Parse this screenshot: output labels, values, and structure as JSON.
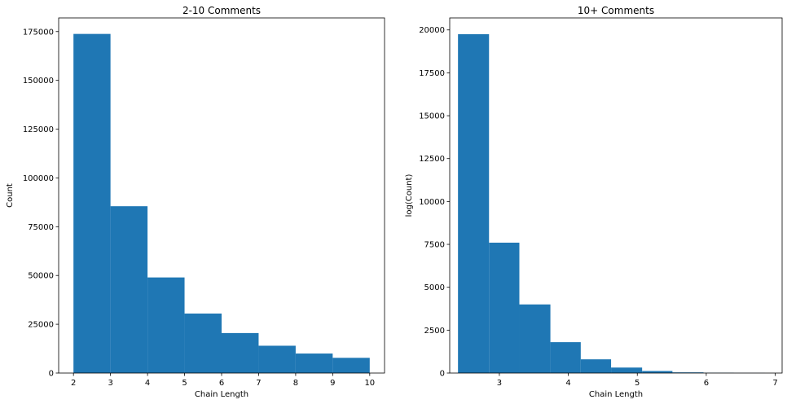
{
  "chart_data": [
    {
      "type": "bar",
      "title": "2-10 Comments",
      "xlabel": "Chain Length",
      "ylabel": "Count",
      "xlim": [
        1.6,
        10.4
      ],
      "ylim": [
        0,
        182000
      ],
      "xticks": [
        2,
        3,
        4,
        5,
        6,
        7,
        8,
        9,
        10
      ],
      "yticks": [
        0,
        25000,
        50000,
        75000,
        100000,
        125000,
        150000,
        175000
      ],
      "xtick_labels": [
        "2",
        "3",
        "4",
        "5",
        "6",
        "7",
        "8",
        "9",
        "10"
      ],
      "ytick_labels": [
        "0",
        "25000",
        "50000",
        "75000",
        "100000",
        "125000",
        "150000",
        "175000"
      ],
      "bins": [
        {
          "x0": 2.0,
          "x1": 3.0,
          "value": 173800
        },
        {
          "x0": 3.0,
          "x1": 4.0,
          "value": 85500
        },
        {
          "x0": 4.0,
          "x1": 5.0,
          "value": 49000
        },
        {
          "x0": 5.0,
          "x1": 6.0,
          "value": 30500
        },
        {
          "x0": 6.0,
          "x1": 7.0,
          "value": 20500
        },
        {
          "x0": 7.0,
          "x1": 8.0,
          "value": 14000
        },
        {
          "x0": 8.0,
          "x1": 9.0,
          "value": 10000
        },
        {
          "x0": 9.0,
          "x1": 10.0,
          "value": 7800
        }
      ],
      "color": "#1f77b4",
      "grid": false
    },
    {
      "type": "bar",
      "title": "10+ Comments",
      "xlabel": "Chain Length",
      "ylabel": "log(Count)",
      "xlim": [
        2.28,
        7.1
      ],
      "ylim": [
        0,
        20700
      ],
      "xticks": [
        3,
        4,
        5,
        6,
        7
      ],
      "yticks": [
        0,
        2500,
        5000,
        7500,
        10000,
        12500,
        15000,
        17500,
        20000
      ],
      "xtick_labels": [
        "3",
        "4",
        "5",
        "6",
        "7"
      ],
      "ytick_labels": [
        "0",
        "2500",
        "5000",
        "7500",
        "10000",
        "12500",
        "15000",
        "17500",
        "20000"
      ],
      "bins": [
        {
          "x0": 2.4,
          "x1": 2.85,
          "value": 19750
        },
        {
          "x0": 2.85,
          "x1": 3.29,
          "value": 7600
        },
        {
          "x0": 3.29,
          "x1": 3.74,
          "value": 4000
        },
        {
          "x0": 3.74,
          "x1": 4.18,
          "value": 1800
        },
        {
          "x0": 4.18,
          "x1": 4.62,
          "value": 800
        },
        {
          "x0": 4.62,
          "x1": 5.07,
          "value": 320
        },
        {
          "x0": 5.07,
          "x1": 5.51,
          "value": 120
        },
        {
          "x0": 5.51,
          "x1": 5.96,
          "value": 40
        },
        {
          "x0": 5.96,
          "x1": 6.4,
          "value": 15
        },
        {
          "x0": 6.4,
          "x1": 6.85,
          "value": 5
        }
      ],
      "color": "#1f77b4",
      "grid": false
    }
  ]
}
